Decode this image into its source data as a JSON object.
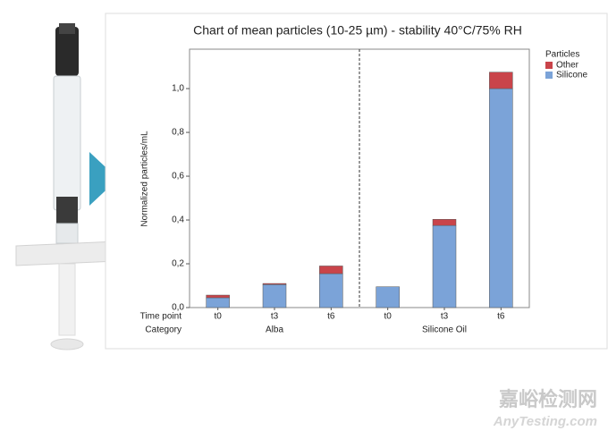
{
  "chart_data": {
    "type": "stacked_bar",
    "title": "Chart of mean particles (10-25 µm) - stability 40°C/75% RH",
    "y_label": "Normalized particles/mL",
    "x_level_labels": [
      "Time point",
      "Category"
    ],
    "categories": [
      "t0",
      "t3",
      "t6",
      "t0",
      "t3",
      "t6"
    ],
    "groups": [
      "Alba",
      "Silicone Oil"
    ],
    "legend_title": "Particles",
    "legend": "top-right",
    "series": [
      {
        "name": "Silicone",
        "color": "#7ba3d8",
        "values": [
          0.045,
          0.105,
          0.155,
          0.095,
          0.375,
          1.0
        ]
      },
      {
        "name": "Other",
        "color": "#c9444a",
        "values": [
          0.012,
          0.005,
          0.035,
          0,
          0.028,
          0.075
        ]
      }
    ],
    "ylim": [
      0,
      1.18
    ],
    "yticks": [
      {
        "value": 0,
        "label": "0,0"
      },
      {
        "value": 0.2,
        "label": "0,2"
      },
      {
        "value": 0.4,
        "label": "0,4"
      },
      {
        "value": 0.6,
        "label": "0,6"
      },
      {
        "value": 0.8,
        "label": "0,8"
      },
      {
        "value": 1.0,
        "label": "1,0"
      }
    ]
  },
  "watermark": {
    "cn": "嘉峪检测网",
    "en": "AnyTesting.com"
  }
}
